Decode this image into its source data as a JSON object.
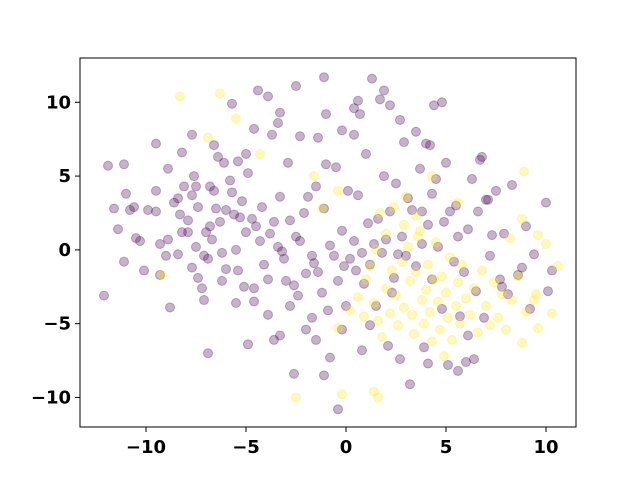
{
  "chart_data": {
    "type": "scatter",
    "title": "",
    "xlabel": "",
    "ylabel": "",
    "xlim": [
      -13.3,
      11.5
    ],
    "ylim": [
      -12,
      13
    ],
    "xticks": [
      -10,
      -5,
      0,
      5,
      10
    ],
    "yticks": [
      -10,
      -5,
      0,
      5,
      10
    ],
    "xtick_labels": [
      "−10",
      "−5",
      "0",
      "5",
      "10"
    ],
    "ytick_labels": [
      "−10",
      "−5",
      "0",
      "5",
      "10"
    ],
    "grid": false,
    "legend": "none",
    "marker_alpha": 0.3,
    "series": [
      {
        "color": "#440154",
        "points": [
          [
            -12.1,
            -3.1
          ],
          [
            -11.9,
            5.7
          ],
          [
            -11.4,
            1.4
          ],
          [
            -11.1,
            5.8
          ],
          [
            -11.0,
            3.8
          ],
          [
            -11.6,
            2.8
          ],
          [
            -11.1,
            -0.8
          ],
          [
            -10.6,
            2.9
          ],
          [
            -10.3,
            0.6
          ],
          [
            -9.9,
            2.7
          ],
          [
            -9.5,
            2.6
          ],
          [
            -9.3,
            0.4
          ],
          [
            -9.5,
            7.2
          ],
          [
            -9.5,
            4.0
          ],
          [
            -8.9,
            0.7
          ],
          [
            -8.4,
            -0.3
          ],
          [
            -8.9,
            5.5
          ],
          [
            -8.4,
            3.5
          ],
          [
            -8.3,
            2.4
          ],
          [
            -8.2,
            1.2
          ],
          [
            -8.1,
            4.3
          ],
          [
            -7.9,
            1.2
          ],
          [
            -7.7,
            3.7
          ],
          [
            -7.5,
            4.3
          ],
          [
            -7.5,
            0.2
          ],
          [
            -7.4,
            -1.9
          ],
          [
            -7.4,
            2.9
          ],
          [
            -7.2,
            -2.6
          ],
          [
            -7.1,
            -0.4
          ],
          [
            -6.9,
            -0.6
          ],
          [
            -6.8,
            1.6
          ],
          [
            -6.7,
            0.7
          ],
          [
            -6.6,
            4.0
          ],
          [
            -6.5,
            2.8
          ],
          [
            -6.3,
            1.9
          ],
          [
            -6.2,
            -0.2
          ],
          [
            -6.1,
            5.9
          ],
          [
            -6.0,
            -1.3
          ],
          [
            -5.7,
            3.9
          ],
          [
            -5.6,
            2.4
          ],
          [
            -5.5,
            0.0
          ],
          [
            -5.4,
            -1.4
          ],
          [
            -5.3,
            2.2
          ],
          [
            -5.1,
            -2.5
          ],
          [
            -5.0,
            1.2
          ],
          [
            -5.0,
            6.5
          ],
          [
            -4.9,
            5.2
          ],
          [
            -4.6,
            -3.5
          ],
          [
            -4.5,
            1.6
          ],
          [
            -4.3,
            0.6
          ],
          [
            -4.2,
            2.9
          ],
          [
            -4.1,
            -1.0
          ],
          [
            -3.9,
            -2.0
          ],
          [
            -3.7,
            7.8
          ],
          [
            -3.6,
            1.9
          ],
          [
            -3.4,
            0.2
          ],
          [
            -3.3,
            3.6
          ],
          [
            -3.1,
            -0.6
          ],
          [
            -3.0,
            -2.1
          ],
          [
            -2.9,
            5.9
          ],
          [
            -2.8,
            2.0
          ],
          [
            -2.6,
            -2.4
          ],
          [
            -2.4,
            -3.1
          ],
          [
            -2.3,
            0.6
          ],
          [
            -2.1,
            2.5
          ],
          [
            -2.0,
            -1.6
          ],
          [
            -1.9,
            3.6
          ],
          [
            -1.7,
            -0.4
          ],
          [
            -1.5,
            4.3
          ],
          [
            -1.4,
            -1.5
          ],
          [
            -1.2,
            -2.9
          ],
          [
            -1.1,
            2.8
          ],
          [
            -1.0,
            5.8
          ],
          [
            -0.9,
            -4.1
          ],
          [
            -0.8,
            0.3
          ],
          [
            -0.6,
            -0.4
          ],
          [
            -0.5,
            5.6
          ],
          [
            -0.4,
            -2.1
          ],
          [
            -0.2,
            1.3
          ],
          [
            -0.1,
            -1.1
          ],
          [
            0.0,
            -3.8
          ],
          [
            0.1,
            4.0
          ],
          [
            0.2,
            -0.6
          ],
          [
            0.4,
            0.6
          ],
          [
            0.5,
            -1.4
          ],
          [
            0.6,
            3.7
          ],
          [
            0.7,
            9.2
          ],
          [
            0.8,
            -0.2
          ],
          [
            0.9,
            -2.3
          ],
          [
            1.0,
            6.5
          ],
          [
            1.1,
            1.8
          ],
          [
            1.2,
            -1.0
          ],
          [
            1.3,
            11.6
          ],
          [
            1.4,
            0.4
          ],
          [
            1.5,
            -3.8
          ],
          [
            1.6,
            2.1
          ],
          [
            1.7,
            10.2
          ],
          [
            1.8,
            -0.2
          ],
          [
            1.9,
            5.0
          ],
          [
            2.0,
            0.7
          ],
          [
            2.1,
            -6.5
          ],
          [
            2.2,
            2.6
          ],
          [
            2.4,
            -1.9
          ],
          [
            2.5,
            4.5
          ],
          [
            2.6,
            -0.3
          ],
          [
            2.7,
            -7.4
          ],
          [
            2.8,
            0.9
          ],
          [
            2.9,
            7.3
          ],
          [
            3.0,
            -0.4
          ],
          [
            3.2,
            -9.1
          ],
          [
            3.3,
            2.7
          ],
          [
            3.5,
            -1.1
          ],
          [
            3.7,
            5.5
          ],
          [
            3.8,
            0.4
          ],
          [
            3.9,
            -6.6
          ],
          [
            4.0,
            7.2
          ],
          [
            4.1,
            1.7
          ],
          [
            4.3,
            -2.0
          ],
          [
            4.4,
            9.8
          ],
          [
            4.5,
            4.8
          ],
          [
            4.6,
            0.2
          ],
          [
            4.8,
            -4.0
          ],
          [
            4.9,
            1.9
          ],
          [
            5.1,
            -7.8
          ],
          [
            5.2,
            2.6
          ],
          [
            5.4,
            -0.8
          ],
          [
            5.6,
            0.9
          ],
          [
            5.7,
            -4.5
          ],
          [
            5.9,
            -1.5
          ],
          [
            6.0,
            -7.6
          ],
          [
            6.1,
            1.4
          ],
          [
            6.3,
            4.8
          ],
          [
            6.5,
            -2.8
          ],
          [
            6.6,
            2.6
          ],
          [
            6.8,
            6.3
          ],
          [
            6.9,
            -4.6
          ],
          [
            7.0,
            3.4
          ],
          [
            7.2,
            -0.4
          ],
          [
            7.5,
            4.0
          ],
          [
            7.7,
            -2.0
          ],
          [
            7.9,
            1.1
          ],
          [
            8.1,
            -3.0
          ],
          [
            8.3,
            4.4
          ],
          [
            8.8,
            -1.2
          ],
          [
            9.0,
            1.6
          ],
          [
            9.4,
            -0.3
          ],
          [
            10.0,
            3.2
          ],
          [
            10.1,
            -2.8
          ],
          [
            -6.9,
            -7.0
          ],
          [
            -3.6,
            -6.1
          ],
          [
            -2.6,
            -8.4
          ],
          [
            -2.0,
            -5.4
          ],
          [
            -1.5,
            -6.1
          ],
          [
            -0.4,
            -10.8
          ],
          [
            -0.8,
            -7.3
          ],
          [
            -4.9,
            -6.4
          ],
          [
            -1.1,
            -8.5
          ],
          [
            -3.3,
            -5.8
          ],
          [
            -8.8,
            -3.9
          ],
          [
            -9.3,
            -1.7
          ],
          [
            -10.1,
            -1.4
          ],
          [
            -5.7,
            9.9
          ],
          [
            -4.4,
            10.8
          ],
          [
            -3.9,
            10.4
          ],
          [
            -2.5,
            11.1
          ],
          [
            -1.1,
            11.7
          ],
          [
            0.4,
            9.6
          ],
          [
            0.6,
            10.1
          ],
          [
            0.4,
            7.8
          ],
          [
            -0.2,
            8.1
          ],
          [
            -1.0,
            9.2
          ],
          [
            -1.4,
            7.6
          ],
          [
            -2.3,
            7.7
          ],
          [
            -3.4,
            8.6
          ],
          [
            -4.6,
            8.2
          ],
          [
            -5.4,
            6.0
          ],
          [
            -6.6,
            7.1
          ],
          [
            -7.7,
            7.8
          ],
          [
            -8.2,
            6.6
          ],
          [
            -6.0,
            2.7
          ],
          [
            -6.8,
            4.3
          ],
          [
            -7.6,
            5.0
          ],
          [
            -3.3,
            9.3
          ],
          [
            1.9,
            10.8
          ],
          [
            2.2,
            9.8
          ],
          [
            2.7,
            8.8
          ],
          [
            3.5,
            8.0
          ],
          [
            4.2,
            7.1
          ],
          [
            4.8,
            10.0
          ],
          [
            3.1,
            3.5
          ],
          [
            3.8,
            2.6
          ],
          [
            4.3,
            3.8
          ],
          [
            5.0,
            5.9
          ],
          [
            5.5,
            3.0
          ],
          [
            6.7,
            6.1
          ],
          [
            7.1,
            3.4
          ],
          [
            7.3,
            1.0
          ],
          [
            7.8,
            -2.5
          ],
          [
            8.6,
            -1.7
          ],
          [
            9.2,
            -4.0
          ],
          [
            10.3,
            -1.4
          ],
          [
            6.1,
            -5.8
          ],
          [
            6.4,
            -7.4
          ],
          [
            5.6,
            -8.2
          ],
          [
            4.1,
            -7.7
          ],
          [
            2.3,
            -2.9
          ],
          [
            1.2,
            -5.1
          ],
          [
            0.8,
            -6.8
          ],
          [
            -0.2,
            -5.4
          ],
          [
            -1.7,
            -4.6
          ],
          [
            -2.8,
            -3.8
          ],
          [
            -3.9,
            -4.4
          ],
          [
            -4.6,
            -2.6
          ],
          [
            -5.5,
            -3.6
          ],
          [
            -6.2,
            -2.1
          ],
          [
            -7.1,
            -3.4
          ],
          [
            -7.7,
            -1.2
          ],
          [
            -1.6,
            -0.9
          ],
          [
            -2.5,
            0.9
          ],
          [
            -3.2,
            -0.1
          ],
          [
            -3.8,
            1.1
          ],
          [
            -4.7,
            2.1
          ],
          [
            -5.2,
            3.3
          ],
          [
            -5.8,
            4.7
          ],
          [
            -6.4,
            6.3
          ],
          [
            -7.0,
            1.2
          ],
          [
            -7.9,
            2.0
          ],
          [
            -8.6,
            3.2
          ],
          [
            -9.0,
            -0.4
          ],
          [
            -10.5,
            0.8
          ],
          [
            -10.8,
            2.7
          ]
        ]
      },
      {
        "color": "#fde725",
        "points": [
          [
            -8.3,
            10.4
          ],
          [
            -6.3,
            10.6
          ],
          [
            -5.5,
            8.9
          ],
          [
            -6.9,
            7.6
          ],
          [
            -4.3,
            6.5
          ],
          [
            -1.6,
            5.0
          ],
          [
            -0.4,
            4.0
          ],
          [
            -1.2,
            2.8
          ],
          [
            -9.2,
            -1.7
          ],
          [
            -2.5,
            -10.0
          ],
          [
            -0.2,
            -9.8
          ],
          [
            1.4,
            -9.6
          ],
          [
            1.6,
            -10.0
          ],
          [
            -0.4,
            -5.3
          ],
          [
            0.2,
            -4.1
          ],
          [
            0.6,
            -3.2
          ],
          [
            0.9,
            -4.5
          ],
          [
            1.0,
            -2.0
          ],
          [
            1.2,
            -1.1
          ],
          [
            1.4,
            -3.6
          ],
          [
            1.6,
            -4.8
          ],
          [
            1.8,
            -5.9
          ],
          [
            2.0,
            -2.6
          ],
          [
            2.2,
            -4.3
          ],
          [
            2.3,
            -1.4
          ],
          [
            2.5,
            -3.1
          ],
          [
            2.6,
            -5.1
          ],
          [
            2.8,
            -0.8
          ],
          [
            2.9,
            -3.9
          ],
          [
            3.1,
            0.2
          ],
          [
            3.2,
            -2.1
          ],
          [
            3.3,
            -4.4
          ],
          [
            3.4,
            -5.7
          ],
          [
            3.5,
            -1.5
          ],
          [
            3.6,
            0.9
          ],
          [
            3.8,
            -3.4
          ],
          [
            3.9,
            -5.0
          ],
          [
            4.0,
            -2.7
          ],
          [
            4.1,
            -1.0
          ],
          [
            4.2,
            -4.2
          ],
          [
            4.3,
            -6.2
          ],
          [
            4.4,
            -2.0
          ],
          [
            4.5,
            0.5
          ],
          [
            4.6,
            -3.5
          ],
          [
            4.7,
            -5.4
          ],
          [
            4.8,
            -1.8
          ],
          [
            4.9,
            -7.2
          ],
          [
            5.0,
            -2.9
          ],
          [
            5.1,
            -4.6
          ],
          [
            5.2,
            -0.5
          ],
          [
            5.3,
            -6.1
          ],
          [
            5.5,
            -3.8
          ],
          [
            5.6,
            -2.2
          ],
          [
            5.7,
            -5.0
          ],
          [
            5.8,
            -1.0
          ],
          [
            6.0,
            -3.3
          ],
          [
            6.2,
            -4.4
          ],
          [
            6.4,
            -2.6
          ],
          [
            6.6,
            -5.6
          ],
          [
            6.8,
            -1.4
          ],
          [
            7.0,
            -3.8
          ],
          [
            7.2,
            -5.1
          ],
          [
            7.4,
            -2.2
          ],
          [
            7.6,
            -4.6
          ],
          [
            7.8,
            -3.0
          ],
          [
            8.0,
            -5.4
          ],
          [
            8.3,
            -3.4
          ],
          [
            8.6,
            -1.8
          ],
          [
            8.8,
            -6.3
          ],
          [
            9.0,
            -4.2
          ],
          [
            9.4,
            -3.4
          ],
          [
            9.6,
            -5.3
          ],
          [
            10.0,
            0.4
          ],
          [
            10.3,
            -4.3
          ],
          [
            8.9,
            5.3
          ],
          [
            5.6,
            3.2
          ],
          [
            3.0,
            3.6
          ],
          [
            4.3,
            5.0
          ],
          [
            3.5,
            2.3
          ],
          [
            2.9,
            1.7
          ],
          [
            2.0,
            1.1
          ],
          [
            1.5,
            0.0
          ],
          [
            1.7,
            2.5
          ],
          [
            2.4,
            2.9
          ],
          [
            3.7,
            1.3
          ],
          [
            8.2,
            0.8
          ],
          [
            9.6,
            1.0
          ],
          [
            8.8,
            2.1
          ],
          [
            9.5,
            -3.0
          ],
          [
            10.6,
            -1.1
          ]
        ]
      }
    ]
  }
}
